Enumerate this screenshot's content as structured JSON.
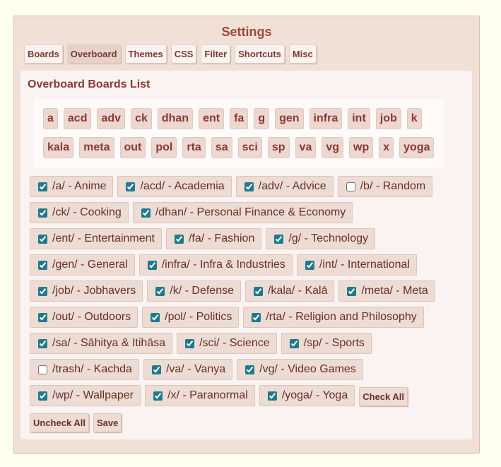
{
  "header": {
    "title": "Settings"
  },
  "tabs": [
    "Boards",
    "Overboard",
    "Themes",
    "CSS",
    "Filter",
    "Shortcuts",
    "Misc"
  ],
  "active_tab": 1,
  "section": {
    "title": "Overboard Boards List"
  },
  "tags": [
    "a",
    "acd",
    "adv",
    "ck",
    "dhan",
    "ent",
    "fa",
    "g",
    "gen",
    "infra",
    "int",
    "job",
    "k",
    "kala",
    "meta",
    "out",
    "pol",
    "rta",
    "sa",
    "sci",
    "sp",
    "va",
    "vg",
    "wp",
    "x",
    "yoga"
  ],
  "boards": [
    {
      "label": "/a/ - Anime",
      "checked": true
    },
    {
      "label": "/acd/ - Academia",
      "checked": true
    },
    {
      "label": "/adv/ - Advice",
      "checked": true
    },
    {
      "label": "/b/ - Random",
      "checked": false
    },
    {
      "label": "/ck/ - Cooking",
      "checked": true
    },
    {
      "label": "/dhan/ - Personal Finance & Economy",
      "checked": true
    },
    {
      "label": "/ent/ - Entertainment",
      "checked": true
    },
    {
      "label": "/fa/ - Fashion",
      "checked": true
    },
    {
      "label": "/g/ - Technology",
      "checked": true
    },
    {
      "label": "/gen/ - General",
      "checked": true
    },
    {
      "label": "/infra/ - Infra & Industries",
      "checked": true
    },
    {
      "label": "/int/ - International",
      "checked": true
    },
    {
      "label": "/job/ - Jobhavers",
      "checked": true
    },
    {
      "label": "/k/ - Defense",
      "checked": true
    },
    {
      "label": "/kala/ - Kalā",
      "checked": true
    },
    {
      "label": "/meta/ - Meta",
      "checked": true
    },
    {
      "label": "/out/ - Outdoors",
      "checked": true
    },
    {
      "label": "/pol/ - Politics",
      "checked": true
    },
    {
      "label": "/rta/ - Religion and Philosophy",
      "checked": true
    },
    {
      "label": "/sa/ - Sāhitya & Itihāsa",
      "checked": true
    },
    {
      "label": "/sci/ - Science",
      "checked": true
    },
    {
      "label": "/sp/ - Sports",
      "checked": true
    },
    {
      "label": "/trash/ - Kachda",
      "checked": false
    },
    {
      "label": "/va/ - Vanya",
      "checked": true
    },
    {
      "label": "/vg/ - Video Games",
      "checked": true
    },
    {
      "label": "/wp/ - Wallpaper",
      "checked": true
    },
    {
      "label": "/x/ - Paranormal",
      "checked": true
    },
    {
      "label": "/yoga/ - Yoga",
      "checked": true
    }
  ],
  "buttons": [
    "Check All",
    "Uncheck All",
    "Save"
  ]
}
